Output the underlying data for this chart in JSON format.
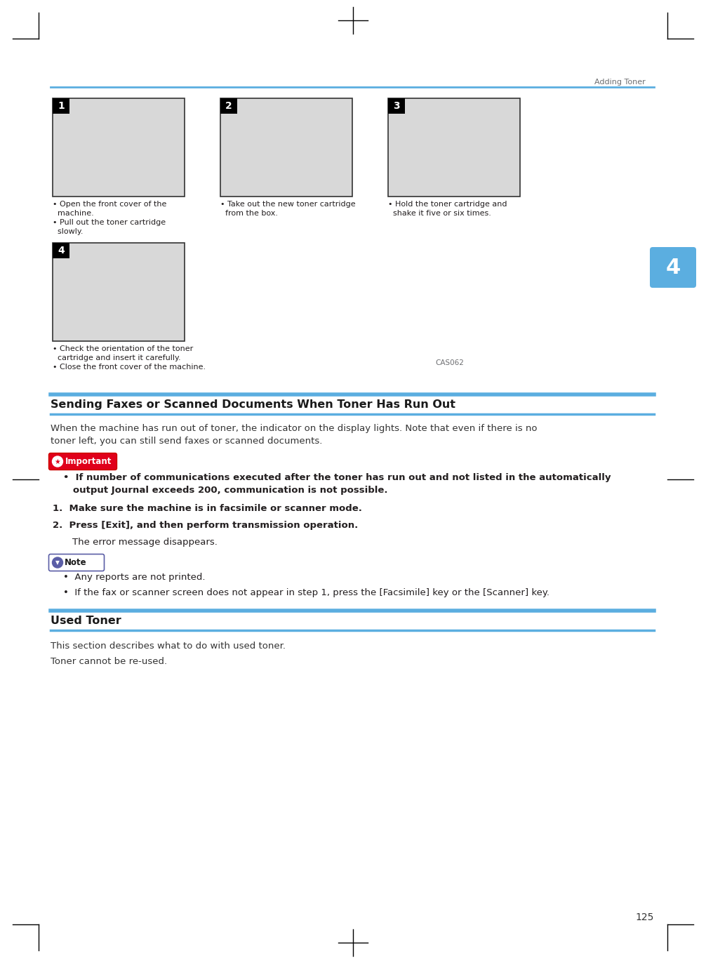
{
  "page_bg": "#ffffff",
  "header_text": "Adding Toner",
  "header_line_color": "#5baee0",
  "section1_title": "Sending Faxes or Scanned Documents When Toner Has Run Out",
  "section1_body_line1": "When the machine has run out of toner, the indicator on the display lights. Note that even if there is no",
  "section1_body_line2": "toner left, you can still send faxes or scanned documents.",
  "important_text_line1": "If number of communications executed after the toner has run out and not listed in the automatically",
  "important_text_line2": "output Journal exceeds 200, communication is not possible.",
  "step1": "Make sure the machine is in facsimile or scanner mode.",
  "step2": "Press [Exit], and then perform transmission operation.",
  "step2_sub": "The error message disappears.",
  "note_item1": "Any reports are not printed.",
  "note_item2": "If the fax or scanner screen does not appear in step 1, press the [Facsimile] key or the [Scanner] key.",
  "section2_title": "Used Toner",
  "section2_body1": "This section describes what to do with used toner.",
  "section2_body2": "Toner cannot be re-used.",
  "page_number": "125",
  "cas_code": "CAS062",
  "tab_color": "#5baee0",
  "tab_text": "4",
  "img1_cap_line1": "• Open the front cover of the",
  "img1_cap_line2": "  machine.",
  "img1_cap_line3": "• Pull out the toner cartridge",
  "img1_cap_line4": "  slowly.",
  "img2_cap_line1": "• Take out the new toner cartridge",
  "img2_cap_line2": "  from the box.",
  "img3_cap_line1": "• Hold the toner cartridge and",
  "img3_cap_line2": "  shake it five or six times.",
  "img4_cap_line1": "• Check the orientation of the toner",
  "img4_cap_line2": "  cartridge and insert it carefully.",
  "img4_cap_line3": "• Close the front cover of the machine.",
  "blue_line_color": "#5baee0",
  "important_red": "#e0001b",
  "note_purple": "#5b5ea6",
  "text_color": "#231f20",
  "gray_text": "#6d6e71"
}
